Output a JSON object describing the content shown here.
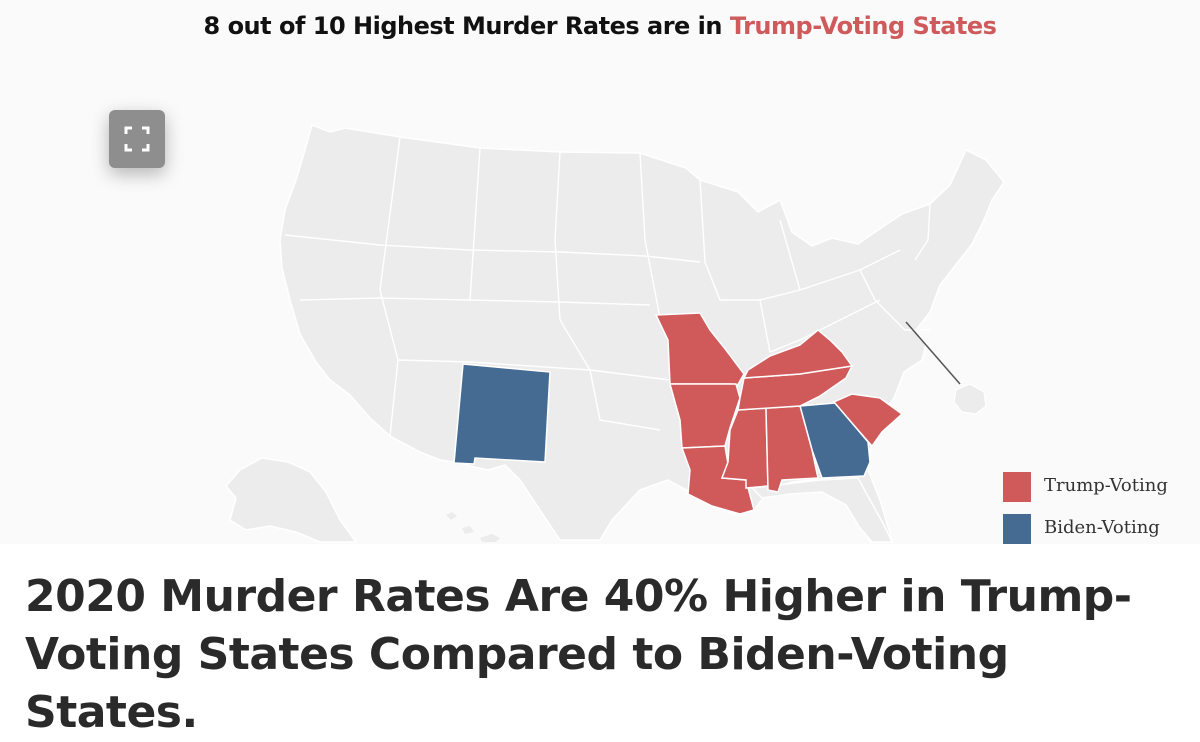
{
  "header": {
    "title_prefix": "8 out of 10 Highest Murder Rates are in ",
    "title_highlight": "Trump-Voting States",
    "highlight_color": "#cf5a5c"
  },
  "map": {
    "expand_icon": "expand-icon",
    "base_color": "#ececec",
    "border_color": "#ffffff",
    "trump_color": "#d05a5a",
    "biden_color": "#456b93",
    "highlighted_states": {
      "trump_voting": [
        "Missouri",
        "Arkansas",
        "Louisiana",
        "Kentucky",
        "Tennessee",
        "Mississippi",
        "Alabama",
        "South Carolina"
      ],
      "biden_voting": [
        "New Mexico",
        "Georgia"
      ]
    }
  },
  "legend": {
    "items": [
      {
        "label": "Trump-Voting",
        "color": "#d05a5a"
      },
      {
        "label": "Biden-Voting",
        "color": "#456b93"
      }
    ]
  },
  "headline": {
    "text": "2020 Murder Rates Are 40% Higher in Trump-Voting States Compared to Biden-Voting States."
  }
}
